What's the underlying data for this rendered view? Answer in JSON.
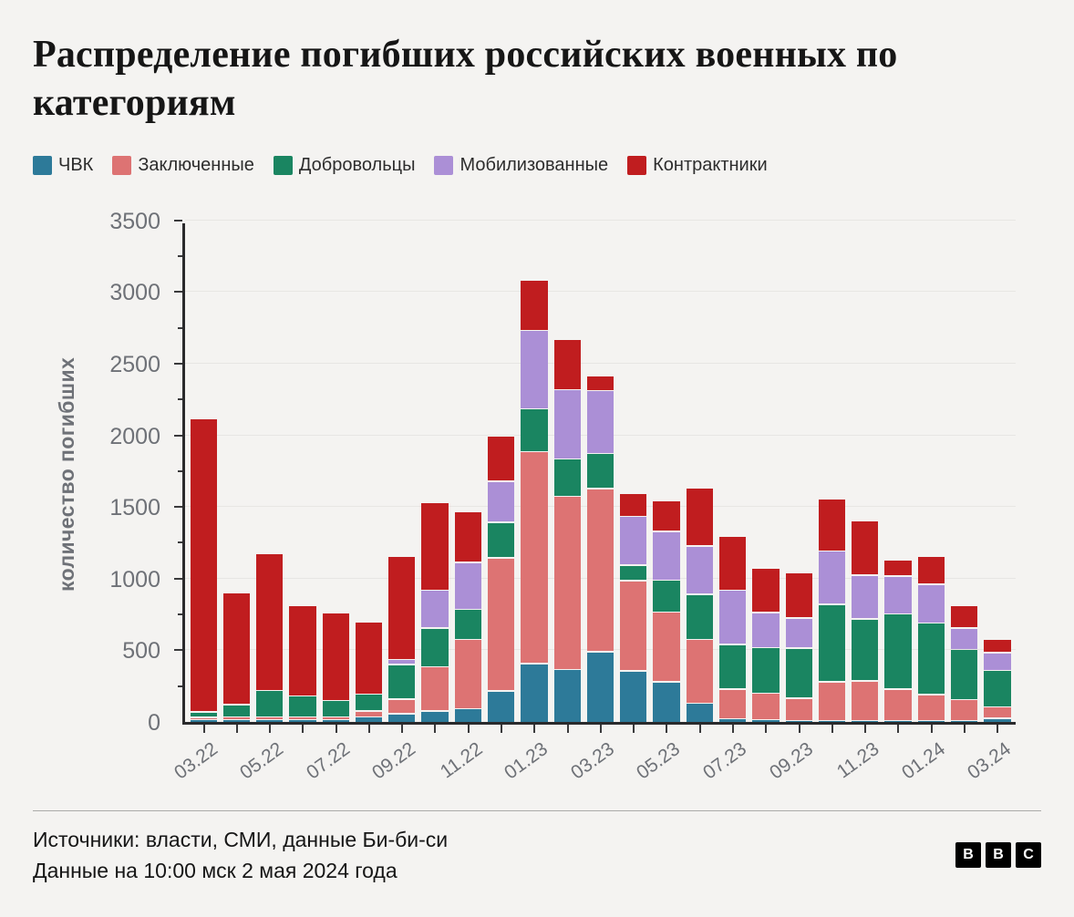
{
  "title": "Распределение погибших российских военных по категориям",
  "legend": [
    {
      "label": "ЧВК",
      "color": "#2d7a99"
    },
    {
      "label": "Заключенные",
      "color": "#dd7373"
    },
    {
      "label": "Добровольцы",
      "color": "#1a8561"
    },
    {
      "label": "Мобилизованные",
      "color": "#ab8fd6"
    },
    {
      "label": "Контрактники",
      "color": "#c01d1f"
    }
  ],
  "chart_data": {
    "type": "stacked-bar",
    "title": "Распределение погибших российских военных по категориям",
    "ylabel": "количество погибших",
    "xlabel": "",
    "ylim": [
      0,
      3500
    ],
    "ytick_step": 500,
    "ytick_minor_step": 250,
    "grid": true,
    "legend_position": "top",
    "categories": [
      "03.22",
      "04.22",
      "05.22",
      "06.22",
      "07.22",
      "08.22",
      "09.22",
      "10.22",
      "11.22",
      "12.22",
      "01.23",
      "02.23",
      "03.23",
      "04.23",
      "05.23",
      "06.23",
      "07.23",
      "08.23",
      "09.23",
      "10.23",
      "11.23",
      "12.23",
      "01.24",
      "02.24",
      "03.24"
    ],
    "x_labels_shown": [
      "03.22",
      "05.22",
      "07.22",
      "09.22",
      "11.22",
      "01.23",
      "03.23",
      "05.23",
      "07.23",
      "09.23",
      "11.23",
      "01.24",
      "03.24"
    ],
    "series": [
      {
        "name": "ЧВК",
        "color": "#2d7a99",
        "values": [
          10,
          10,
          10,
          10,
          10,
          30,
          50,
          70,
          85,
          210,
          400,
          360,
          485,
          350,
          275,
          125,
          15,
          10,
          5,
          5,
          5,
          5,
          5,
          5,
          20
        ]
      },
      {
        "name": "Заключенные",
        "color": "#dd7373",
        "values": [
          5,
          10,
          10,
          10,
          10,
          30,
          95,
          300,
          475,
          920,
          1470,
          1200,
          1130,
          620,
          475,
          435,
          200,
          175,
          145,
          260,
          265,
          210,
          170,
          135,
          70
        ]
      },
      {
        "name": "Добровольцы",
        "color": "#1a8561",
        "values": [
          30,
          75,
          175,
          135,
          105,
          110,
          230,
          260,
          200,
          240,
          290,
          250,
          235,
          100,
          215,
          305,
          300,
          310,
          340,
          530,
          425,
          515,
          490,
          340,
          245
        ]
      },
      {
        "name": "Мобилизованные",
        "color": "#ab8fd6",
        "values": [
          0,
          0,
          0,
          0,
          0,
          0,
          25,
          255,
          320,
          275,
          540,
          475,
          430,
          330,
          330,
          330,
          370,
          235,
          200,
          365,
          295,
          255,
          260,
          140,
          115
        ]
      },
      {
        "name": "Контрактники",
        "color": "#c01d1f",
        "values": [
          2035,
          770,
          945,
          625,
          600,
          495,
          710,
          600,
          345,
          305,
          340,
          345,
          90,
          150,
          205,
          395,
          365,
          300,
          310,
          355,
          370,
          105,
          190,
          150,
          85
        ]
      }
    ]
  },
  "footer": {
    "line1": "Источники: власти, СМИ, данные Би-би-си",
    "line2": "Данные на 10:00 мск 2 мая 2024 года"
  },
  "logo_letters": [
    "B",
    "B",
    "C"
  ]
}
